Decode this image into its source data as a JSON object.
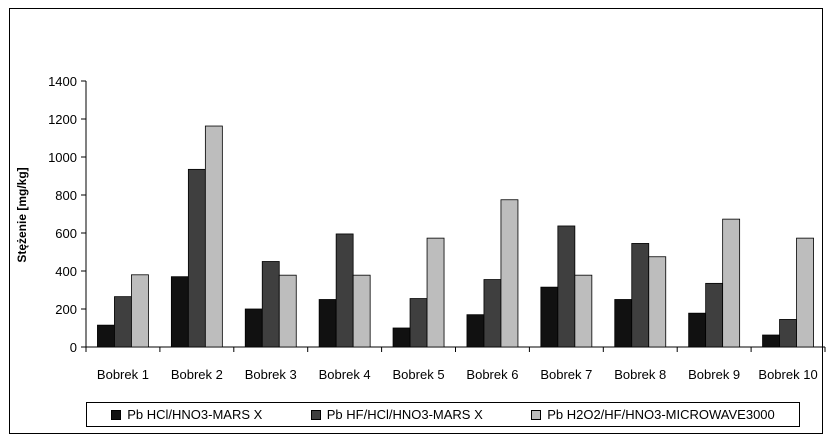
{
  "chart_data": {
    "type": "bar",
    "ylabel": "Stężenie [mg/kg]",
    "ylim": [
      0,
      1400
    ],
    "yticks": [
      0,
      200,
      400,
      600,
      800,
      1000,
      1200,
      1400
    ],
    "categories": [
      "Bobrek 1",
      "Bobrek 2",
      "Bobrek 3",
      "Bobrek 4",
      "Bobrek 5",
      "Bobrek 6",
      "Bobrek 7",
      "Bobrek 8",
      "Bobrek 9",
      "Bobrek 10"
    ],
    "series": [
      {
        "name": "Pb HCl/HNO3-MARS X",
        "color": "#111111",
        "values": [
          115,
          370,
          200,
          250,
          100,
          170,
          315,
          250,
          178,
          63
        ]
      },
      {
        "name": "Pb HF/HCl/HNO3-MARS X",
        "color": "#3f3f3f",
        "values": [
          265,
          935,
          450,
          595,
          255,
          355,
          637,
          545,
          335,
          145
        ]
      },
      {
        "name": "Pb H2O2/HF/HNO3-MICROWAVE3000",
        "color": "#bdbdbd",
        "values": [
          380,
          1163,
          378,
          378,
          573,
          775,
          378,
          475,
          673,
          573
        ]
      }
    ],
    "grid": false,
    "legend_position": "bottom"
  }
}
